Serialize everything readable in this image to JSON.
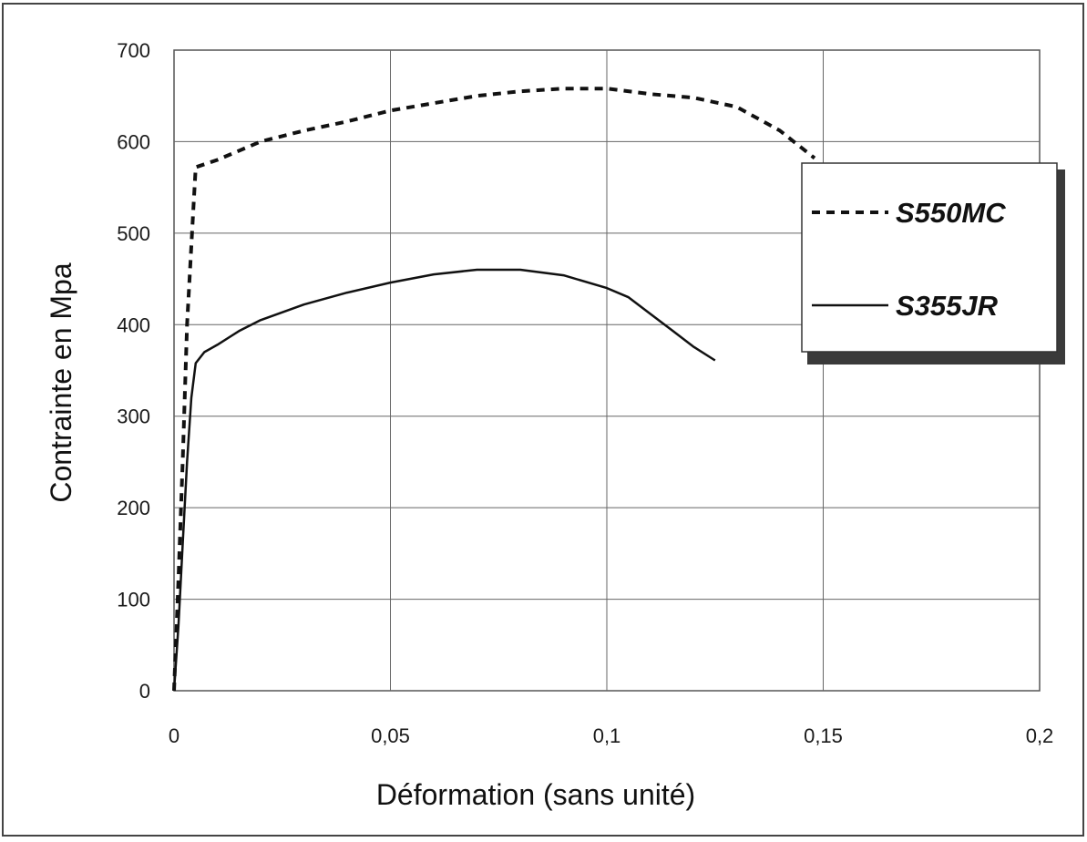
{
  "chart_data": {
    "type": "line",
    "title": "",
    "xlabel": "Déformation (sans unité)",
    "ylabel": "Contrainte en Mpa",
    "xlim": [
      0,
      0.2
    ],
    "ylim": [
      0,
      700
    ],
    "x_ticks": [
      0,
      0.05,
      0.1,
      0.15,
      0.2
    ],
    "x_tick_labels": [
      "0",
      "0,05",
      "0,1",
      "0,15",
      "0,2"
    ],
    "y_ticks": [
      0,
      100,
      200,
      300,
      400,
      500,
      600,
      700
    ],
    "y_tick_labels": [
      "0",
      "100",
      "200",
      "300",
      "400",
      "500",
      "600",
      "700"
    ],
    "grid": true,
    "legend_position": "right",
    "series": [
      {
        "name": "S550MC",
        "line_style": "dashed",
        "color": "#111111",
        "points": [
          [
            0,
            0
          ],
          [
            0.001,
            120
          ],
          [
            0.002,
            250
          ],
          [
            0.003,
            400
          ],
          [
            0.0045,
            530
          ],
          [
            0.005,
            572
          ],
          [
            0.01,
            580
          ],
          [
            0.02,
            600
          ],
          [
            0.03,
            612
          ],
          [
            0.04,
            622
          ],
          [
            0.05,
            634
          ],
          [
            0.06,
            642
          ],
          [
            0.07,
            650
          ],
          [
            0.08,
            655
          ],
          [
            0.09,
            658
          ],
          [
            0.1,
            658
          ],
          [
            0.11,
            652
          ],
          [
            0.12,
            648
          ],
          [
            0.13,
            638
          ],
          [
            0.14,
            612
          ],
          [
            0.148,
            582
          ]
        ]
      },
      {
        "name": "S355JR",
        "line_style": "solid",
        "color": "#111111",
        "points": [
          [
            0,
            0
          ],
          [
            0.001,
            70
          ],
          [
            0.002,
            160
          ],
          [
            0.003,
            250
          ],
          [
            0.004,
            320
          ],
          [
            0.005,
            358
          ],
          [
            0.007,
            370
          ],
          [
            0.01,
            378
          ],
          [
            0.015,
            393
          ],
          [
            0.02,
            405
          ],
          [
            0.03,
            422
          ],
          [
            0.04,
            435
          ],
          [
            0.05,
            446
          ],
          [
            0.06,
            455
          ],
          [
            0.07,
            460
          ],
          [
            0.08,
            460
          ],
          [
            0.09,
            454
          ],
          [
            0.1,
            440
          ],
          [
            0.105,
            430
          ],
          [
            0.11,
            412
          ],
          [
            0.115,
            394
          ],
          [
            0.12,
            376
          ],
          [
            0.125,
            361
          ]
        ]
      }
    ]
  }
}
